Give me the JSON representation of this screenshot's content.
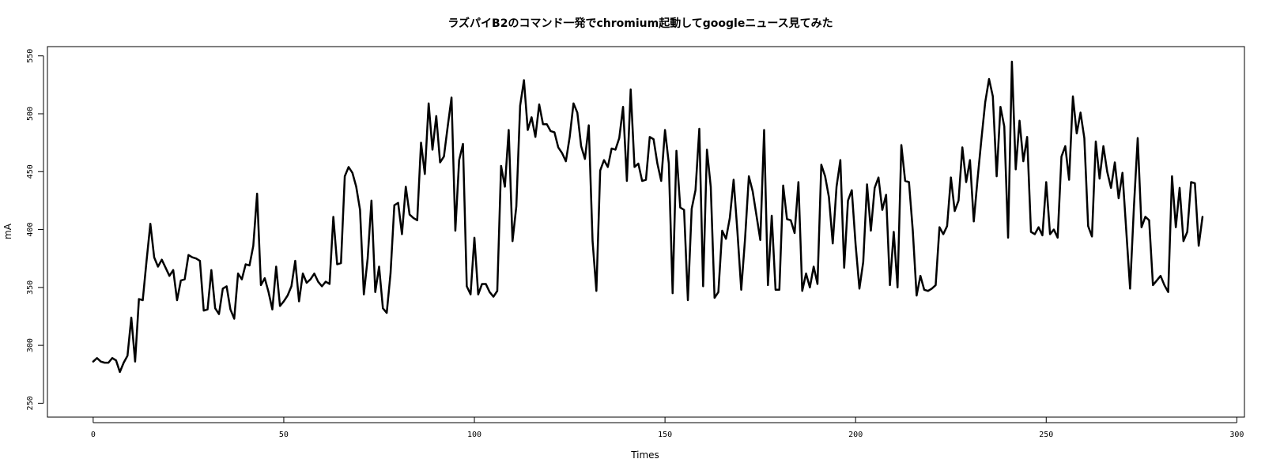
{
  "chart_data": {
    "type": "line",
    "title": "ラズパイB2のコマンド一発でchromium起動してgoogleニュース見てみた",
    "xlabel": "Times",
    "ylabel": "mA",
    "xlim": [
      -12,
      302
    ],
    "ylim": [
      238,
      558
    ],
    "x_ticks": [
      0,
      50,
      100,
      150,
      200,
      250,
      300
    ],
    "y_ticks": [
      250,
      300,
      350,
      400,
      450,
      500,
      550
    ],
    "grid": false,
    "series": [
      {
        "color": "#000000",
        "values": [
          286,
          289,
          286,
          285,
          285,
          289,
          287,
          277,
          285,
          291,
          324,
          286,
          340,
          339,
          373,
          405,
          376,
          368,
          374,
          367,
          360,
          365,
          339,
          356,
          357,
          378,
          376,
          375,
          373,
          330,
          331,
          365,
          332,
          327,
          349,
          351,
          331,
          323,
          362,
          357,
          370,
          369,
          386,
          431,
          352,
          358,
          346,
          331,
          368,
          334,
          338,
          343,
          351,
          373,
          338,
          362,
          354,
          357,
          362,
          355,
          351,
          355,
          353,
          411,
          370,
          371,
          446,
          454,
          449,
          437,
          417,
          344,
          375,
          425,
          346,
          368,
          332,
          328,
          362,
          421,
          423,
          396,
          437,
          413,
          410,
          408,
          475,
          448,
          509,
          469,
          498,
          458,
          463,
          489,
          514,
          399,
          460,
          474,
          351,
          344,
          393,
          344,
          353,
          353,
          346,
          342,
          347,
          455,
          437,
          486,
          390,
          420,
          507,
          529,
          486,
          497,
          480,
          508,
          491,
          491,
          485,
          484,
          471,
          466,
          459,
          480,
          509,
          501,
          472,
          461,
          490,
          390,
          347,
          451,
          460,
          454,
          470,
          469,
          479,
          506,
          442,
          521,
          454,
          457,
          442,
          443,
          480,
          478,
          457,
          442,
          486,
          457,
          345,
          468,
          419,
          417,
          339,
          418,
          434,
          487,
          351,
          469,
          437,
          341,
          346,
          399,
          392,
          410,
          443,
          398,
          348,
          392,
          446,
          433,
          412,
          391,
          486,
          352,
          412,
          348,
          348,
          438,
          409,
          408,
          397,
          441,
          347,
          362,
          350,
          368,
          353,
          456,
          446,
          428,
          388,
          437,
          460,
          367,
          425,
          434,
          387,
          349,
          372,
          439,
          399,
          436,
          445,
          417,
          430,
          352,
          398,
          350,
          473,
          442,
          441,
          399,
          343,
          360,
          348,
          347,
          349,
          352,
          402,
          396,
          403,
          445,
          416,
          425,
          471,
          441,
          460,
          407,
          444,
          478,
          510,
          530,
          515,
          446,
          506,
          489,
          393,
          545,
          452,
          494,
          459,
          480,
          398,
          396,
          402,
          395,
          441,
          396,
          400,
          393,
          463,
          472,
          443,
          515,
          483,
          501,
          479,
          403,
          394,
          476,
          444,
          472,
          450,
          436,
          458,
          427,
          449,
          399,
          349,
          419,
          479,
          402,
          411,
          408,
          352,
          356,
          360,
          352,
          346,
          446,
          402,
          436,
          390,
          398,
          441,
          440,
          386,
          411
        ]
      }
    ]
  }
}
